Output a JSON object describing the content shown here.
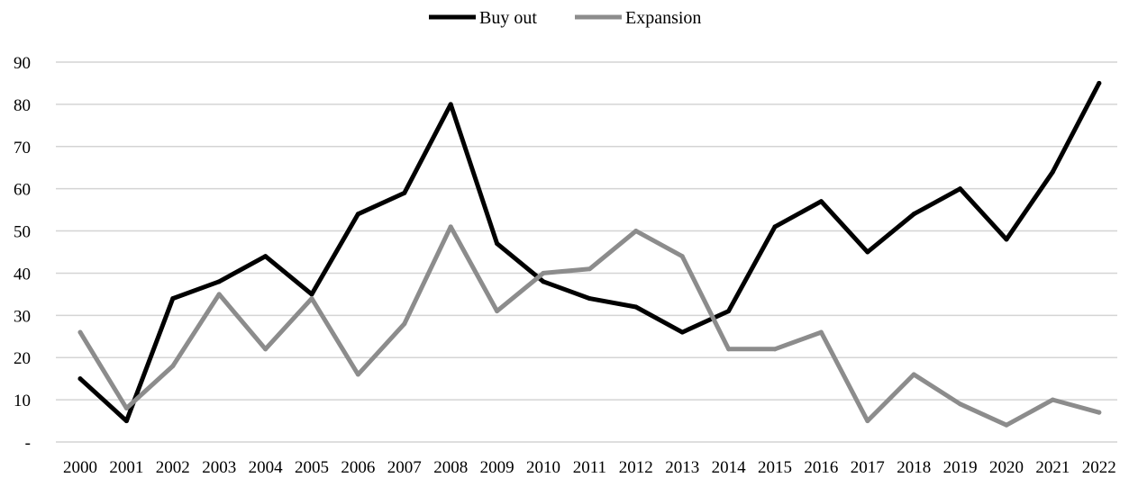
{
  "chart_data": {
    "type": "line",
    "title": "",
    "xlabel": "",
    "ylabel": "",
    "categories": [
      "2000",
      "2001",
      "2002",
      "2003",
      "2004",
      "2005",
      "2006",
      "2007",
      "2008",
      "2009",
      "2010",
      "2011",
      "2012",
      "2013",
      "2014",
      "2015",
      "2016",
      "2017",
      "2018",
      "2019",
      "2020",
      "2021",
      "2022"
    ],
    "series": [
      {
        "name": "Buy out",
        "color": "#000000",
        "values": [
          15,
          5,
          34,
          38,
          44,
          35,
          54,
          59,
          80,
          47,
          38,
          34,
          32,
          26,
          31,
          51,
          57,
          45,
          54,
          60,
          48,
          64,
          85
        ]
      },
      {
        "name": "Expansion",
        "color": "#8c8c8c",
        "values": [
          26,
          8,
          18,
          35,
          22,
          34,
          16,
          28,
          51,
          31,
          40,
          41,
          50,
          44,
          22,
          22,
          26,
          5,
          16,
          9,
          4,
          10,
          7
        ]
      }
    ],
    "ylim": [
      0,
      90
    ],
    "yticks": [
      {
        "value": 0,
        "label": "-"
      },
      {
        "value": 10,
        "label": "10"
      },
      {
        "value": 20,
        "label": "20"
      },
      {
        "value": 30,
        "label": "30"
      },
      {
        "value": 40,
        "label": "40"
      },
      {
        "value": 50,
        "label": "50"
      },
      {
        "value": 60,
        "label": "60"
      },
      {
        "value": 70,
        "label": "70"
      },
      {
        "value": 80,
        "label": "80"
      },
      {
        "value": 90,
        "label": "90"
      }
    ],
    "grid": true,
    "legend_position": "top-center"
  }
}
